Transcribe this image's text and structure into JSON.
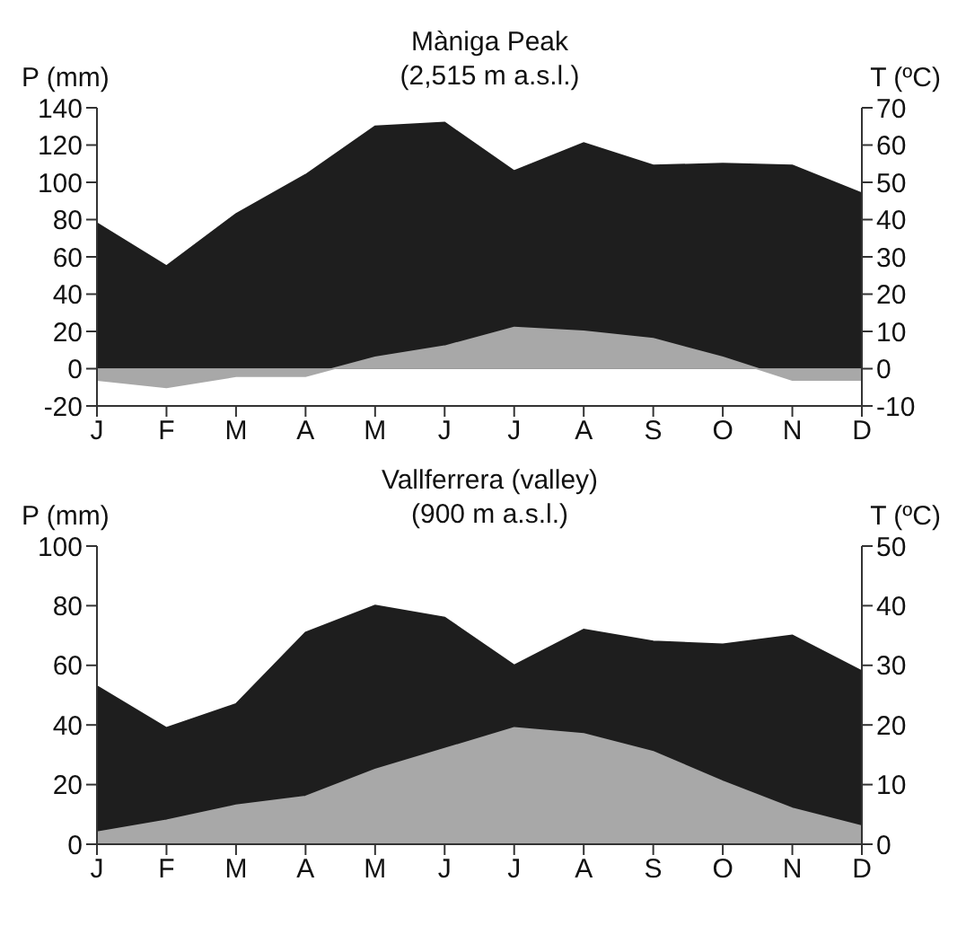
{
  "chart_data": [
    {
      "type": "area",
      "title": "Màniga Peak",
      "subtitle": "(2,515 m a.s.l.)",
      "ylabel": "P (mm)",
      "y2label": "T (ºC)",
      "categories": [
        "J",
        "F",
        "M",
        "A",
        "M",
        "J",
        "J",
        "A",
        "S",
        "O",
        "N",
        "D"
      ],
      "series": [
        {
          "color": "#1e1e1e",
          "values": [
            78,
            55,
            83,
            104,
            130,
            132,
            106,
            121,
            109,
            110,
            109,
            94
          ]
        },
        {
          "color": "#a8a8a8",
          "axis": "y2",
          "values": [
            -3,
            -5,
            -2,
            -2,
            3,
            6,
            11,
            10,
            8,
            3,
            -3,
            -3
          ]
        }
      ],
      "ylim": [
        -20,
        140
      ],
      "yticks": [
        -20,
        0,
        20,
        40,
        60,
        80,
        100,
        120,
        140
      ],
      "y2lim": [
        -10,
        70
      ],
      "y2ticks": [
        -10,
        0,
        10,
        20,
        30,
        40,
        50,
        60,
        70
      ],
      "grid": false,
      "legend": false
    },
    {
      "type": "area",
      "title": "Vallferrera (valley)",
      "subtitle": "(900 m a.s.l.)",
      "ylabel": "P (mm)",
      "y2label": "T (ºC)",
      "categories": [
        "J",
        "F",
        "M",
        "A",
        "M",
        "J",
        "J",
        "A",
        "S",
        "O",
        "N",
        "D"
      ],
      "series": [
        {
          "color": "#1e1e1e",
          "values": [
            53,
            39,
            47,
            71,
            80,
            76,
            60,
            72,
            68,
            67,
            70,
            58
          ]
        },
        {
          "color": "#a8a8a8",
          "axis": "y2",
          "values": [
            2,
            4,
            6.5,
            8,
            12.5,
            16,
            19.5,
            18.5,
            15.5,
            10.5,
            6,
            3
          ]
        }
      ],
      "ylim": [
        0,
        100
      ],
      "yticks": [
        0,
        20,
        40,
        60,
        80,
        100
      ],
      "y2lim": [
        0,
        50
      ],
      "y2ticks": [
        0,
        10,
        20,
        30,
        40,
        50
      ],
      "grid": false,
      "legend": false
    }
  ]
}
